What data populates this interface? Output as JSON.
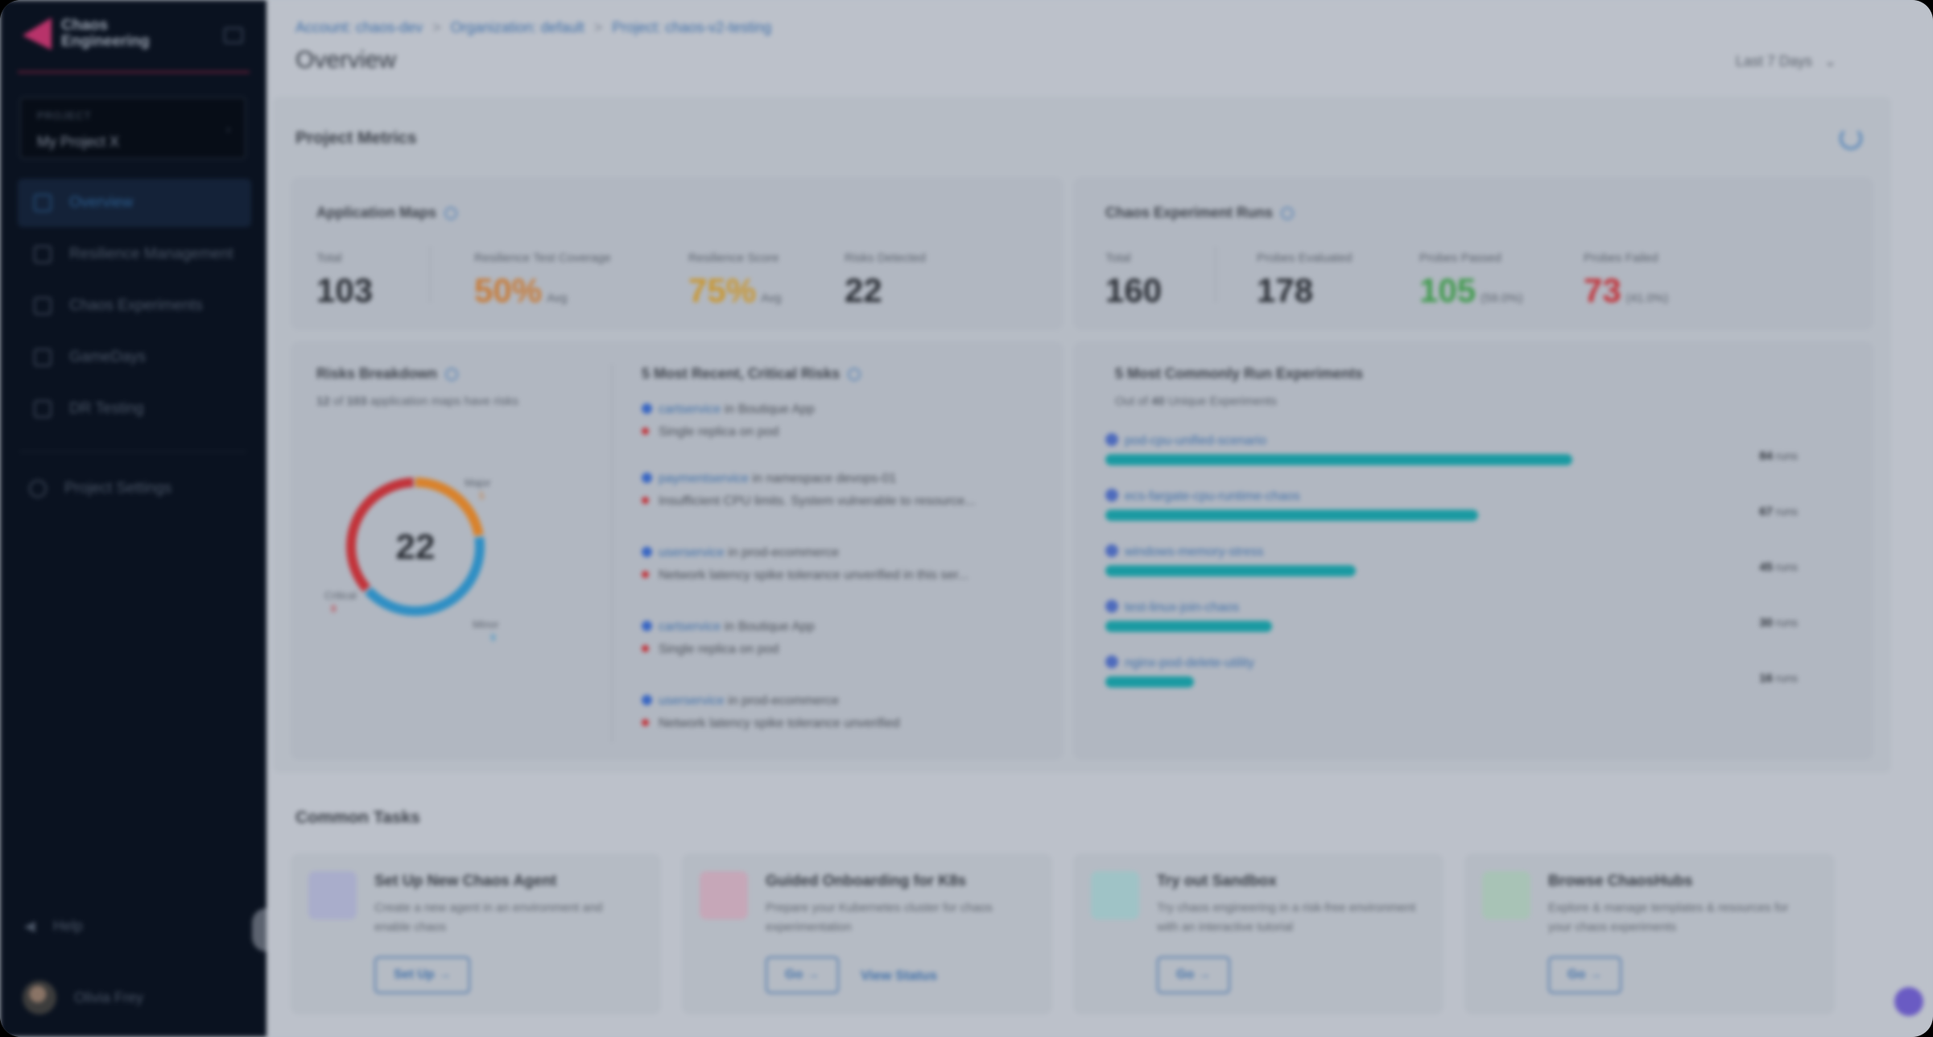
{
  "brand": {
    "name": "Chaos Engineering",
    "accent": "#b8336a"
  },
  "project_selector": {
    "label": "PROJECT",
    "value": "My Project X"
  },
  "nav": [
    {
      "label": "Overview",
      "icon": "overview-icon",
      "active": true
    },
    {
      "label": "Resilience Management",
      "icon": "shield-icon"
    },
    {
      "label": "Chaos Experiments",
      "icon": "flask-icon"
    },
    {
      "label": "GameDays",
      "icon": "calendar-icon"
    },
    {
      "label": "DR Testing",
      "icon": "refresh-icon"
    }
  ],
  "settings_label": "Project Settings",
  "help_label": "Help",
  "user_name": "Olivia Frey",
  "breadcrumbs": [
    "Account: chaos-dev",
    "Organization: default",
    "Project: chaos-v2-testing"
  ],
  "page_title": "Overview",
  "time_range": "Last 7 Days",
  "metrics_title": "Project Metrics",
  "app_maps": {
    "title": "Application Maps",
    "stats": [
      {
        "label": "Total",
        "value": "103"
      },
      {
        "label": "Resilience Test Coverage",
        "value": "50%",
        "sub": "Avg"
      },
      {
        "label": "Resilience Score",
        "value": "75%",
        "sub": "Avg"
      },
      {
        "label": "Risks Detected",
        "value": "22"
      }
    ]
  },
  "chaos_runs": {
    "title": "Chaos Experiment Runs",
    "stats": [
      {
        "label": "Total",
        "value": "160"
      },
      {
        "label": "Probes Evaluated",
        "value": "178"
      },
      {
        "label": "Probes Passed",
        "value": "105",
        "sub": "(59.0%)"
      },
      {
        "label": "Probes Failed",
        "value": "73",
        "sub": "(41.0%)"
      }
    ]
  },
  "risks": {
    "title": "Risks Breakdown",
    "subtitle_pre": "12",
    "subtitle_mid": "of",
    "subtitle_total": "103",
    "subtitle_post": "application maps have risks",
    "total": "22",
    "labels": {
      "major": "Major",
      "minor": "Minor",
      "critical": "Critical"
    },
    "counts": {
      "major": "5",
      "minor": "9",
      "critical": "8"
    },
    "colors": {
      "critical": "#c2333a",
      "major": "#d9822b",
      "minor": "#2f8fc4"
    }
  },
  "recent_risks": {
    "title": "5 Most Recent, Critical Risks",
    "items": [
      {
        "service": "cartservice",
        "ns": "Boutique App",
        "desc": "Single replica on pod"
      },
      {
        "service": "paymentservice",
        "ns": "namespace devops-01",
        "desc": "Insufficient CPU limits. System vulnerable to resource..."
      },
      {
        "service": "userservice",
        "ns": "prod-ecommerce",
        "desc": "Network latency spike tolerance unverified in this ser..."
      },
      {
        "service": "cartservice",
        "ns": "Boutique App",
        "desc": "Single replica on pod"
      },
      {
        "service": "userservice",
        "ns": "prod-ecommerce",
        "desc": "Network latency spike tolerance unverified"
      }
    ]
  },
  "common_experiments": {
    "title": "5 Most Commonly Run Experiments",
    "subtitle_pre": "Out of",
    "subtitle_count": "40",
    "subtitle_post": "Unique Experiments",
    "unit": "runs",
    "items": [
      {
        "name": "pod-cpu-unified-scenario",
        "runs": 84
      },
      {
        "name": "ecs-fargate-cpu-runtime-chaos",
        "runs": 67
      },
      {
        "name": "windows-memory-stress",
        "runs": 45
      },
      {
        "name": "test-linux-join-chaos",
        "runs": 30
      },
      {
        "name": "nginx-pod-delete-utility",
        "runs": 16
      }
    ]
  },
  "tasks_title": "Common Tasks",
  "tasks": [
    {
      "title": "Set Up New Chaos Agent",
      "desc": "Create a new agent in an environment and enable chaos",
      "button": "Set Up",
      "icon_color": "#a3a7d6"
    },
    {
      "title": "Guided Onboarding for K8s",
      "desc": "Prepare your Kubernetes cluster for chaos experimentation",
      "button": "Go",
      "secondary": "View Status",
      "icon_color": "#d47fa4"
    },
    {
      "title": "Try out Sandbox",
      "desc": "Try chaos engineering in a risk-free environment with an interactive tutorial",
      "button": "Go",
      "icon_color": "#2fa6ab"
    },
    {
      "title": "Browse ChaosHubs",
      "desc": "Explore & manage templates & resources for your chaos experiments",
      "button": "Go",
      "icon_color": "#3ea879"
    }
  ]
}
